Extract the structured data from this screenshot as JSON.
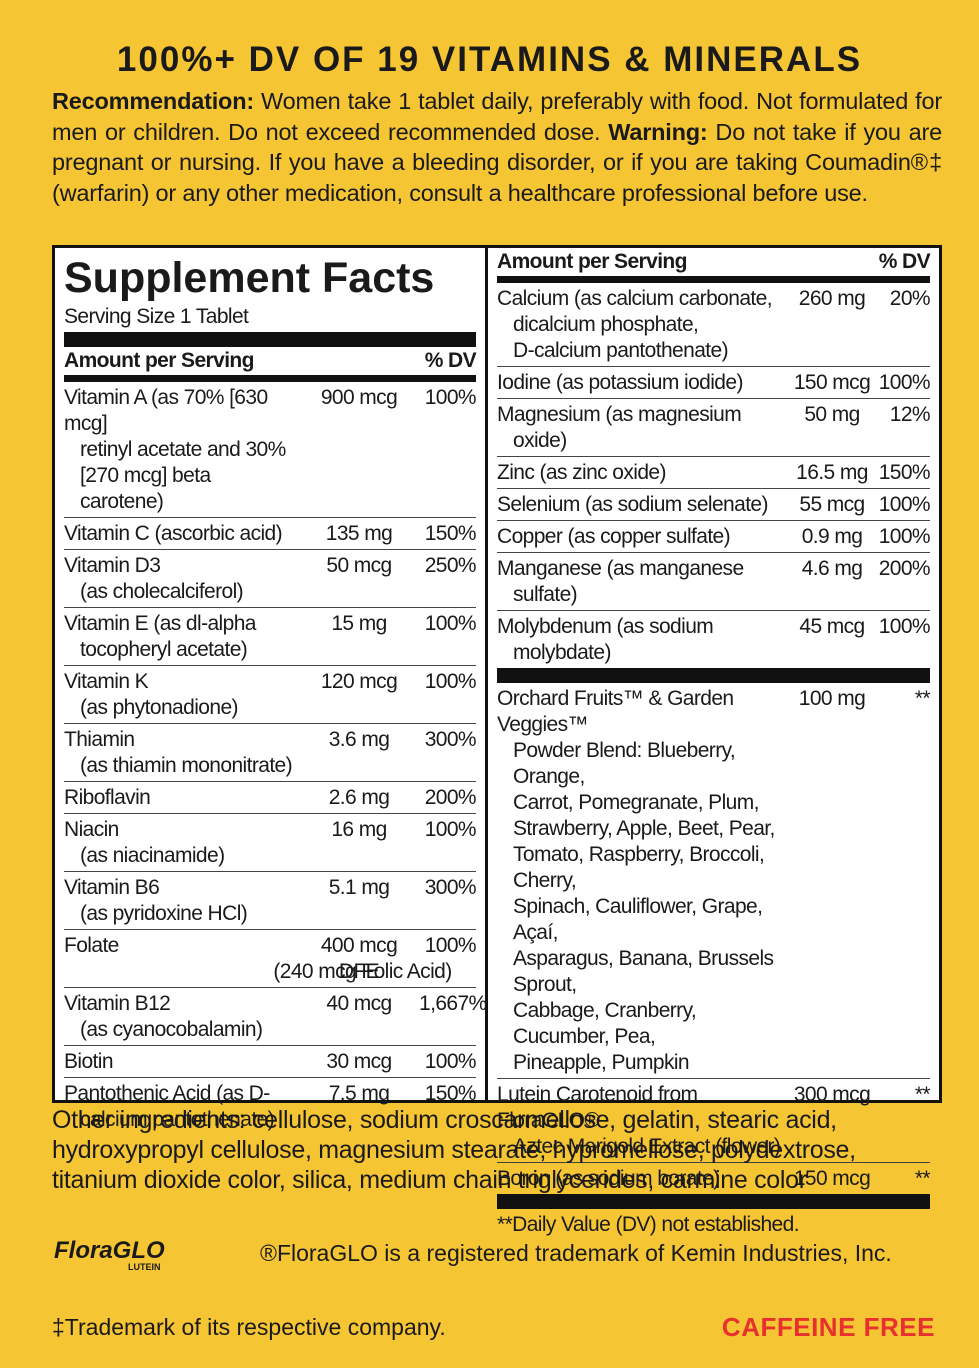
{
  "header": {
    "title": "100%+ DV OF 19 VITAMINS & MINERALS"
  },
  "recommendation": {
    "label": "Recommendation:",
    "text": "Women take 1 tablet daily, preferably with food. Not formulated for men or children. Do not exceed recommended dose.",
    "warning_label": "Warning:",
    "warning_text": "Do not take if you are pregnant or nursing. If you have a bleeding disorder, or if you are taking Coumadin®‡ (warfarin) or any other medication, consult a healthcare professional before use."
  },
  "facts": {
    "title": "Supplement Facts",
    "serving_size": "Serving Size 1 Tablet",
    "left": {
      "header_amount": "Amount per Serving",
      "header_dv": "% DV",
      "rows": [
        {
          "name": [
            "Vitamin A (as 70% [630 mcg]",
            "retinyl acetate and 30%",
            "[270 mcg] beta carotene)"
          ],
          "amount": "900 mcg",
          "dv": "100%"
        },
        {
          "name": [
            "Vitamin C (ascorbic acid)"
          ],
          "amount": "135 mg",
          "dv": "150%"
        },
        {
          "name": [
            "Vitamin D3",
            "(as cholecalciferol)"
          ],
          "amount": "50 mcg",
          "dv": "250%"
        },
        {
          "name": [
            "Vitamin E (as dl-alpha",
            "tocopheryl acetate)"
          ],
          "amount": "15 mg",
          "dv": "100%"
        },
        {
          "name": [
            "Vitamin K",
            "(as phytonadione)"
          ],
          "amount": "120 mcg",
          "dv": "100%"
        },
        {
          "name": [
            "Thiamin",
            "(as thiamin mononitrate)"
          ],
          "amount": "3.6 mg",
          "dv": "300%"
        },
        {
          "name": [
            "Riboflavin"
          ],
          "amount": "2.6 mg",
          "dv": "200%"
        },
        {
          "name": [
            "Niacin",
            "(as niacinamide)"
          ],
          "amount": "16 mg",
          "dv": "100%"
        },
        {
          "name": [
            "Vitamin B6",
            "(as pyridoxine HCl)"
          ],
          "amount": "5.1 mg",
          "dv": "300%"
        },
        {
          "name": [
            "Folate"
          ],
          "amount": "400 mcg DFE",
          "amount_note": "(240 mcg Folic Acid)",
          "dv": "100%"
        },
        {
          "name": [
            "Vitamin B12",
            "(as cyanocobalamin)"
          ],
          "amount": "40 mcg",
          "dv": "1,667%"
        },
        {
          "name": [
            "Biotin"
          ],
          "amount": "30 mcg",
          "dv": "100%"
        },
        {
          "name": [
            "Pantothenic Acid (as D-",
            "calcium pantothenate)"
          ],
          "amount": "7.5 mg",
          "dv": "150%"
        }
      ]
    },
    "right": {
      "header_amount": "Amount per Serving",
      "header_dv": "% DV",
      "rows": [
        {
          "name": [
            "Calcium (as calcium carbonate,",
            "dicalcium phosphate,",
            "D-calcium pantothenate)"
          ],
          "amount": "260 mg",
          "dv": "20%"
        },
        {
          "name": [
            "Iodine (as potassium iodide)"
          ],
          "amount": "150 mcg",
          "dv": "100%"
        },
        {
          "name": [
            "Magnesium (as magnesium",
            "oxide)"
          ],
          "amount": "50 mg",
          "dv": "12%"
        },
        {
          "name": [
            "Zinc (as zinc oxide)"
          ],
          "amount": "16.5 mg",
          "dv": "150%"
        },
        {
          "name": [
            "Selenium (as sodium selenate)"
          ],
          "amount": "55 mcg",
          "dv": "100%"
        },
        {
          "name": [
            "Copper (as copper sulfate)"
          ],
          "amount": "0.9 mg",
          "dv": "100%"
        },
        {
          "name": [
            "Manganese (as manganese",
            "sulfate)"
          ],
          "amount": "4.6 mg",
          "dv": "200%"
        },
        {
          "name": [
            "Molybdenum (as sodium",
            "molybdate)"
          ],
          "amount": "45 mcg",
          "dv": "100%"
        }
      ],
      "blends": [
        {
          "name": [
            "Orchard Fruits™ & Garden Veggies™",
            "Powder Blend: Blueberry, Orange,",
            "Carrot, Pomegranate, Plum,",
            "Strawberry,  Apple, Beet, Pear,",
            "Tomato, Raspberry, Broccoli, Cherry,",
            "Spinach, Cauliflower, Grape, Açaí,",
            "Asparagus, Banana, Brussels Sprout,",
            "Cabbage, Cranberry, Cucumber, Pea,",
            "Pineapple, Pumpkin"
          ],
          "amount": "100 mg",
          "dv": "**"
        },
        {
          "name": [
            "Lutein Carotenoid from FloraGLO®",
            "Aztec Marigold Extract (flower)"
          ],
          "amount": "300 mcg",
          "dv": "**"
        },
        {
          "name": [
            "Boron (as sodium borate)"
          ],
          "amount": "150 mcg",
          "dv": "**"
        }
      ],
      "footnote": "**Daily Value (DV) not established."
    }
  },
  "other_ingredients": "Other ingredients: cellulose, sodium croscarmellose, gelatin, stearic acid, hydroxypropyl cellulose, magnesium stearate, hypromellose, polydextrose, titanium dioxide color, silica, medium chain triglycerides, carmine color",
  "floraglo": {
    "logo": "FloraGLO",
    "logo_sub": "LUTEIN",
    "note": "®FloraGLO is a registered trademark of Kemin Industries, Inc."
  },
  "footer": {
    "trademark": "‡Trademark of its respective company.",
    "badge": "CAFFEINE FREE"
  }
}
